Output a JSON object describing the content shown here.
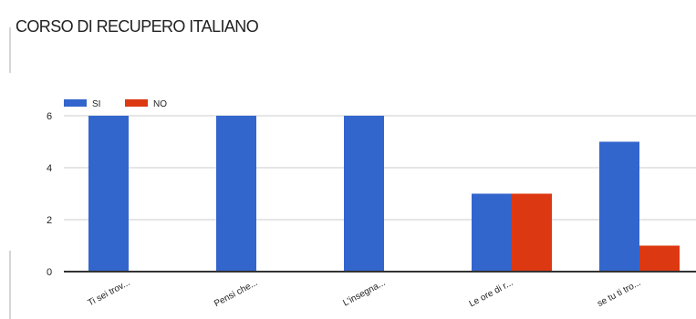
{
  "chart_data": {
    "type": "bar",
    "title": "CORSO DI RECUPERO ITALIANO",
    "categories": [
      "Ti sei trov...",
      "Pensi che...",
      "L'insegna...",
      "Le ore di r...",
      "se tu ti tro..."
    ],
    "series": [
      {
        "name": "SI",
        "values": [
          6,
          6,
          6,
          3,
          5
        ],
        "color": "#3366cc"
      },
      {
        "name": "NO",
        "values": [
          0,
          0,
          0,
          3,
          1
        ],
        "color": "#dc3912"
      }
    ],
    "yticks": [
      0,
      2,
      4,
      6
    ],
    "ylim": [
      0,
      6
    ],
    "xlabel": "",
    "ylabel": "",
    "legend_position": "top-left",
    "grid": true
  }
}
